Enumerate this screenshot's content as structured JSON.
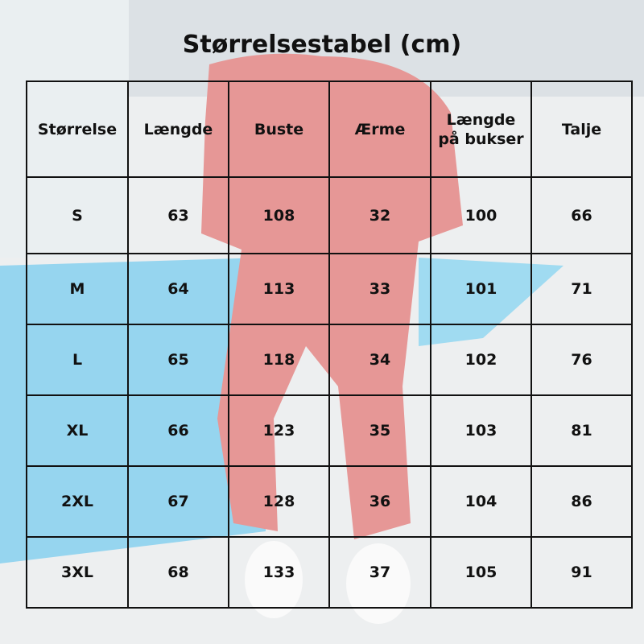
{
  "title": "Størrelsestabel (cm)",
  "table": {
    "header": [
      "Størrelse",
      "Længde",
      "Buste",
      "Ærme",
      "Længde på bukser",
      "Talje"
    ],
    "rows": [
      [
        "S",
        "63",
        "108",
        "32",
        "100",
        "66"
      ],
      [
        "M",
        "64",
        "113",
        "33",
        "101",
        "71"
      ],
      [
        "L",
        "65",
        "118",
        "34",
        "102",
        "76"
      ],
      [
        "XL",
        "66",
        "123",
        "35",
        "103",
        "81"
      ],
      [
        "2XL",
        "67",
        "128",
        "36",
        "104",
        "86"
      ],
      [
        "3XL",
        "68",
        "133",
        "37",
        "105",
        "91"
      ]
    ]
  }
}
